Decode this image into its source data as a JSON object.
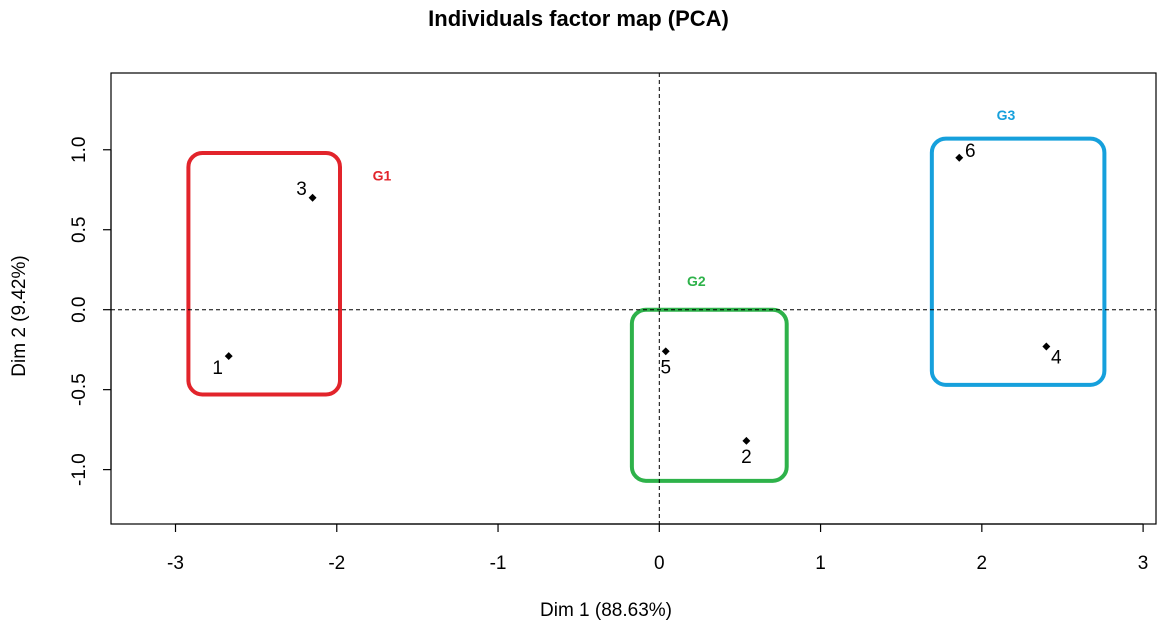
{
  "chart_data": {
    "type": "scatter",
    "title": "Individuals factor map (PCA)",
    "xlabel": "Dim 1 (88.63%)",
    "ylabel": "Dim 2 (9.42%)",
    "xlim": [
      -3.4,
      3.08
    ],
    "ylim": [
      -1.34,
      1.48
    ],
    "x_ticks": [
      -3,
      -2,
      -1,
      0,
      1,
      2,
      3
    ],
    "y_ticks": [
      -1.0,
      -0.5,
      0.0,
      0.5,
      1.0
    ],
    "x_tick_labels": [
      "-3",
      "-2",
      "-1",
      "0",
      "1",
      "2",
      "3"
    ],
    "y_tick_labels": [
      "-1.0",
      "-0.5",
      "0.0",
      "0.5",
      "1.0"
    ],
    "reference_lines": {
      "x": 0,
      "y": 0,
      "style": "dashed"
    },
    "grid": false,
    "points": [
      {
        "label": "1",
        "x": -2.67,
        "y": -0.29,
        "label_side": "bottom-left"
      },
      {
        "label": "2",
        "x": 0.54,
        "y": -0.82,
        "label_side": "below"
      },
      {
        "label": "3",
        "x": -2.15,
        "y": 0.7,
        "label_side": "top-left"
      },
      {
        "label": "4",
        "x": 2.4,
        "y": -0.23,
        "label_side": "bottom-right"
      },
      {
        "label": "5",
        "x": 0.04,
        "y": -0.26,
        "label_side": "below"
      },
      {
        "label": "6",
        "x": 1.86,
        "y": 0.95,
        "label_side": "top-right"
      }
    ],
    "groups": [
      {
        "name": "G1",
        "color": "#e2242b",
        "x_range": [
          -2.92,
          -1.98
        ],
        "y_range": [
          -0.53,
          0.98
        ],
        "label_at": [
          -1.72,
          0.83
        ]
      },
      {
        "name": "G2",
        "color": "#2eb24a",
        "x_range": [
          -0.17,
          0.79
        ],
        "y_range": [
          -1.07,
          0.0
        ],
        "label_at": [
          0.23,
          0.17
        ]
      },
      {
        "name": "G3",
        "color": "#16a0dc",
        "x_range": [
          1.69,
          2.76
        ],
        "y_range": [
          -0.47,
          1.07
        ],
        "label_at": [
          2.15,
          1.21
        ]
      }
    ]
  }
}
